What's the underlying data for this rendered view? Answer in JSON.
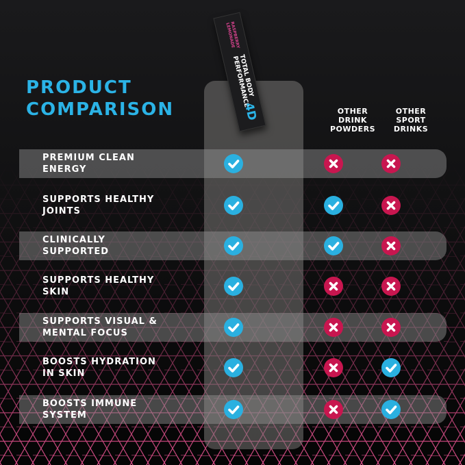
{
  "title": [
    "PRODUCT",
    "COMPARISON"
  ],
  "packet": {
    "brand_logo": "4D",
    "name": [
      "TOTAL BODY",
      "PERFORMANCE"
    ],
    "flavor": [
      "RASPBERRY",
      "LEMONADE"
    ]
  },
  "columns": [
    {
      "label": [
        "OTHER",
        "DRINK",
        "POWDERS"
      ]
    },
    {
      "label": [
        "OTHER",
        "SPORT",
        "DRINKS"
      ]
    }
  ],
  "rows": [
    {
      "label": [
        "PREMIUM CLEAN",
        "ENERGY"
      ],
      "product": "check",
      "powders": "cross",
      "drinks": "cross"
    },
    {
      "label": [
        "SUPPORTS HEALTHY",
        "JOINTS"
      ],
      "product": "check",
      "powders": "check",
      "drinks": "cross"
    },
    {
      "label": [
        "CLINICALLY",
        "SUPPORTED"
      ],
      "product": "check",
      "powders": "check",
      "drinks": "cross"
    },
    {
      "label": [
        "SUPPORTS HEALTHY",
        "SKIN"
      ],
      "product": "check",
      "powders": "cross",
      "drinks": "cross"
    },
    {
      "label": [
        "SUPPORTS VISUAL &",
        "MENTAL FOCUS"
      ],
      "product": "check",
      "powders": "cross",
      "drinks": "cross"
    },
    {
      "label": [
        "BOOSTS HYDRATION",
        "IN SKIN"
      ],
      "product": "check",
      "powders": "cross",
      "drinks": "check"
    },
    {
      "label": [
        "BOOSTS IMMUNE",
        "SYSTEM"
      ],
      "product": "check",
      "powders": "cross",
      "drinks": "check"
    }
  ],
  "colors": {
    "accent_blue": "#2ab0e0",
    "cross_red": "#c8164f",
    "hex_pink": "#e0508c",
    "background": "#161618"
  }
}
